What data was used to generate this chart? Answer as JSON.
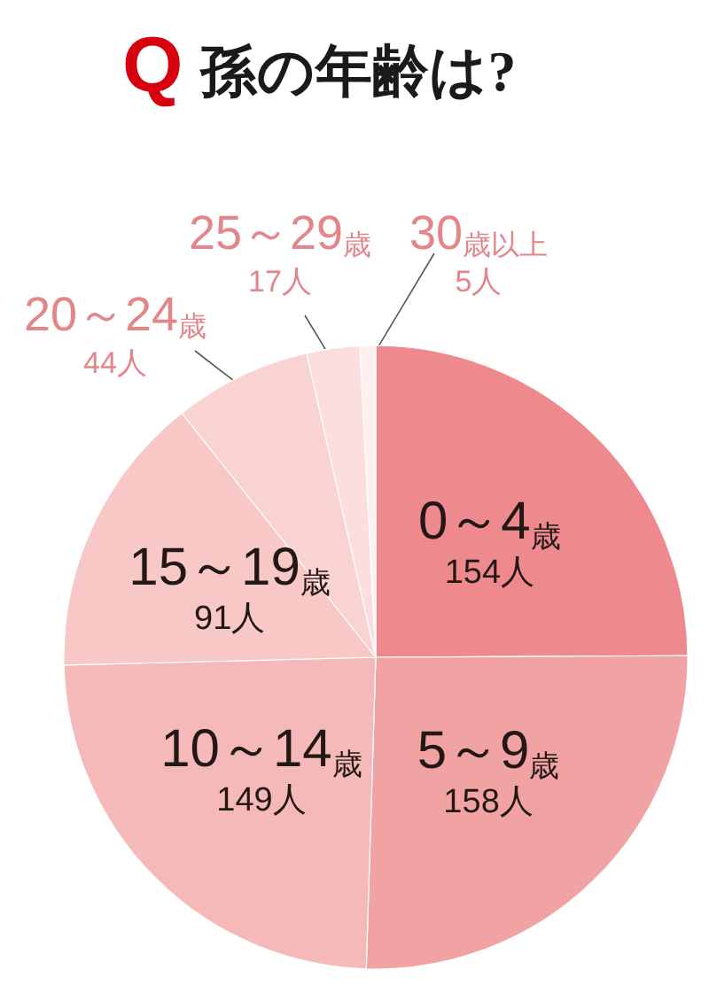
{
  "chart_data": {
    "type": "pie",
    "title": "Q 孫の年齢は?",
    "categories": [
      "0～4歳",
      "5～9歳",
      "10～14歳",
      "15～19歳",
      "20～24歳",
      "25～29歳",
      "30歳以上"
    ],
    "values": [
      154,
      158,
      149,
      91,
      44,
      17,
      5
    ],
    "value_labels": [
      "154人",
      "158人",
      "149人",
      "91人",
      "44人",
      "17人",
      "5人"
    ],
    "colors": [
      "#ee8a8d",
      "#f1a2a3",
      "#f4b9b8",
      "#f7c8c6",
      "#f9d3d1",
      "#fbdedd",
      "#fdf0ef"
    ]
  }
}
